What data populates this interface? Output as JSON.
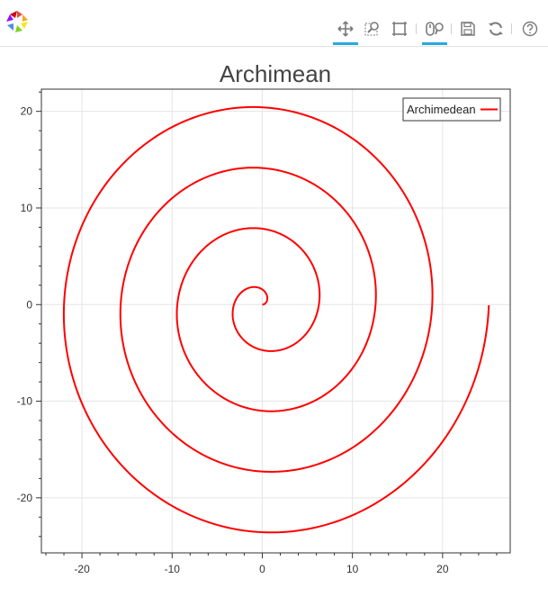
{
  "toolbar": {
    "tools": [
      {
        "name": "pan-tool",
        "icon": "move-arrows-icon",
        "active": true
      },
      {
        "name": "box-zoom-tool",
        "icon": "zoom-box-icon",
        "active": false
      },
      {
        "name": "box-select-tool",
        "icon": "select-box-icon",
        "active": false
      },
      {
        "name": "wheel-zoom-tool",
        "icon": "wheel-zoom-icon",
        "active": true
      },
      {
        "name": "save-tool",
        "icon": "save-icon",
        "active": false
      },
      {
        "name": "reset-tool",
        "icon": "reset-icon",
        "active": false
      },
      {
        "name": "help-tool",
        "icon": "help-icon",
        "active": false
      }
    ],
    "accent_color": "#26aae1"
  },
  "chart_data": {
    "type": "line",
    "title": "Archimean",
    "xlabel": "",
    "ylabel": "",
    "xlim": [
      -24.5,
      27.5
    ],
    "ylim": [
      -25.7,
      22.3
    ],
    "xticks": [
      -20,
      -10,
      0,
      10,
      20
    ],
    "yticks": [
      -20,
      -10,
      0,
      10,
      20
    ],
    "xtick_labels": [
      "-20",
      "-10",
      "0",
      "10",
      "20"
    ],
    "ytick_labels": [
      "-20",
      "-10",
      "0",
      "10",
      "20"
    ],
    "grid": true,
    "legend": {
      "position": "top-right",
      "entries": [
        "Archimedean"
      ]
    },
    "series": [
      {
        "name": "Archimedean",
        "color": "#ff0000",
        "equation": "r = a*theta, theta from 0 to 8*pi",
        "a": 1.0,
        "theta_start": 0,
        "theta_end": 25.13
      }
    ]
  }
}
